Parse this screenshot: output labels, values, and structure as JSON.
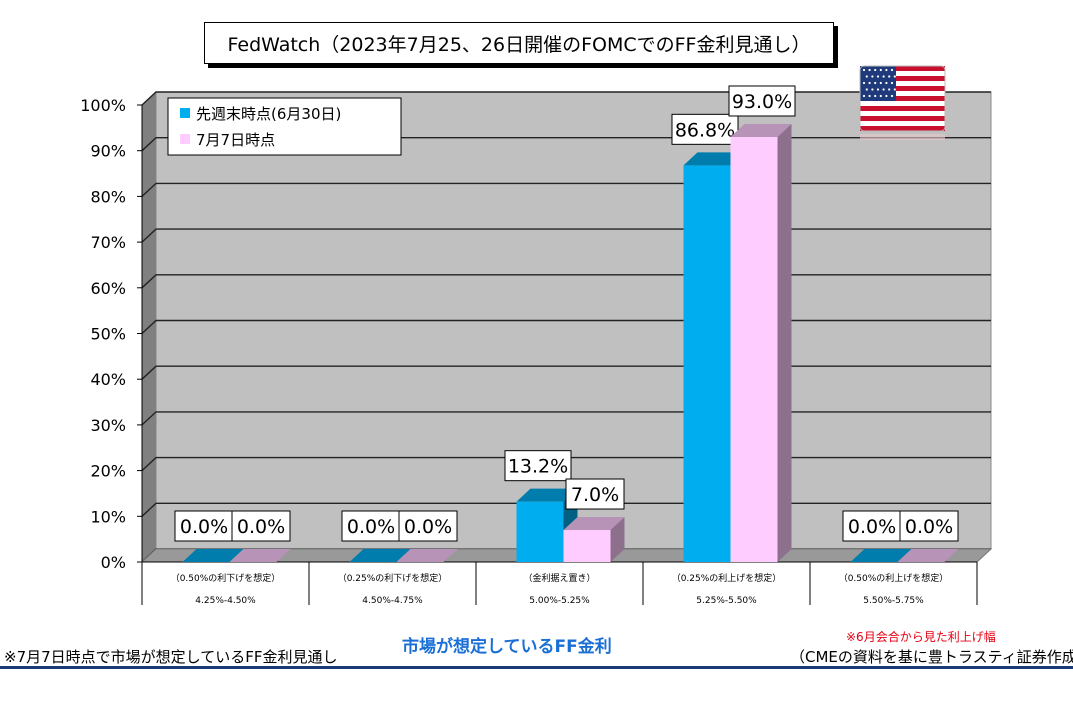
{
  "chart_data": {
    "type": "bar",
    "title": "FedWatch（2023年7月25、26日開催のFOMCでのFF金利見通し）",
    "xlabel": "市場が想定しているFF金利",
    "ylabel": "",
    "ylim": [
      0,
      100
    ],
    "yticks": [
      "0%",
      "10%",
      "20%",
      "30%",
      "40%",
      "50%",
      "60%",
      "70%",
      "80%",
      "90%",
      "100%"
    ],
    "categories": [
      "4.25%-4.50%",
      "4.50%-4.75%",
      "5.00%-5.25%",
      "5.25%-5.50%",
      "5.50%-5.75%"
    ],
    "category_notes": [
      "（0.50%の利下げを想定）",
      "（0.25%の利下げを想定）",
      "（金利据え置き）",
      "（0.25%の利上げを想定）",
      "（0.50%の利上げを想定）"
    ],
    "series": [
      {
        "name": "先週末時点(6月30日)",
        "color": "#00aeef",
        "values": [
          0.0,
          0.0,
          13.2,
          86.8,
          0.0
        ],
        "labels": [
          "0.0%",
          "0.0%",
          "13.2%",
          "86.8%",
          "0.0%"
        ]
      },
      {
        "name": "7月7日時点",
        "color": "#ffccff",
        "values": [
          0.0,
          0.0,
          7.0,
          93.0,
          0.0
        ],
        "labels": [
          "0.0%",
          "0.0%",
          "7.0%",
          "93.0%",
          "0.0%"
        ]
      }
    ],
    "grid": true,
    "legend": "top-left",
    "chart_style": "3d-column"
  },
  "notes": {
    "left": "※7月7日時点で市場が想定しているFF金利見通し",
    "red": "※6月会合から見た利上げ幅",
    "source": "（CMEの資料を基に豊トラスティ証券作成）"
  },
  "flag_icon": "us-flag-icon"
}
